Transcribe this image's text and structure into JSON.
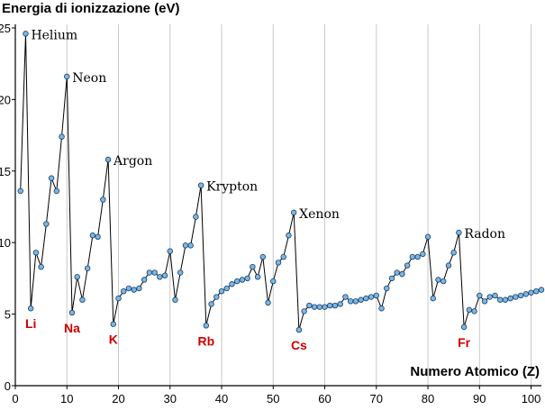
{
  "chart_data": {
    "type": "line",
    "title": "",
    "ylabel": "Energia di ionizzazione (eV)",
    "xlabel": "Numero Atomico (Z)",
    "xlim": [
      0,
      102
    ],
    "ylim": [
      0,
      25
    ],
    "xticks": [
      0,
      10,
      20,
      30,
      40,
      50,
      60,
      70,
      80,
      90,
      100
    ],
    "yticks": [
      0,
      5,
      10,
      15,
      20,
      25
    ],
    "grid": "vertical-only",
    "line_color": "#000000",
    "marker_fill": "#7ab8e0",
    "marker_stroke": "#1a3a6a",
    "noble_label_color": "#000000",
    "alkali_label_color": "#cc0000",
    "series": [
      {
        "x": [
          1,
          2,
          3,
          4,
          5,
          6,
          7,
          8,
          9,
          10,
          11,
          12,
          13,
          14,
          15,
          16,
          17,
          18,
          19,
          20,
          21,
          22,
          23,
          24,
          25,
          26,
          27,
          28,
          29,
          30,
          31,
          32,
          33,
          34,
          35,
          36,
          37,
          38,
          39,
          40,
          41,
          42,
          43,
          44,
          45,
          46,
          47,
          48,
          49,
          50,
          51,
          52,
          53,
          54,
          55,
          56,
          57,
          58,
          59,
          60,
          61,
          62,
          63,
          64,
          65,
          66,
          67,
          68,
          69,
          70,
          71,
          72,
          73,
          74,
          75,
          76,
          77,
          78,
          79,
          80,
          81,
          82,
          83,
          84,
          85,
          86,
          87,
          88,
          89,
          90,
          91,
          92,
          93,
          94,
          95,
          96,
          97,
          98,
          99,
          100,
          101,
          102
        ],
        "y": [
          13.6,
          24.6,
          5.4,
          9.3,
          8.3,
          11.3,
          14.5,
          13.6,
          17.4,
          21.6,
          5.1,
          7.6,
          6.0,
          8.2,
          10.5,
          10.4,
          13.0,
          15.8,
          4.3,
          6.1,
          6.6,
          6.8,
          6.7,
          6.8,
          7.4,
          7.9,
          7.9,
          7.6,
          7.7,
          9.4,
          6.0,
          7.9,
          9.8,
          9.8,
          11.8,
          14.0,
          4.2,
          5.7,
          6.2,
          6.6,
          6.8,
          7.1,
          7.3,
          7.4,
          7.5,
          8.3,
          7.6,
          9.0,
          5.8,
          7.3,
          8.6,
          9.0,
          10.5,
          12.1,
          3.9,
          5.2,
          5.6,
          5.5,
          5.5,
          5.5,
          5.6,
          5.6,
          5.7,
          6.2,
          5.9,
          5.9,
          6.0,
          6.1,
          6.2,
          6.3,
          5.4,
          6.8,
          7.5,
          7.9,
          7.8,
          8.4,
          9.0,
          9.0,
          9.2,
          10.4,
          6.1,
          7.4,
          7.3,
          8.4,
          9.3,
          10.7,
          4.1,
          5.3,
          5.2,
          6.3,
          5.9,
          6.2,
          6.3,
          6.0,
          6.0,
          6.1,
          6.2,
          6.3,
          6.4,
          6.5,
          6.6,
          6.7
        ]
      }
    ],
    "annotations": [
      {
        "text": "Helium",
        "x": 2,
        "y": 24.6,
        "group": "noble"
      },
      {
        "text": "Neon",
        "x": 10,
        "y": 21.6,
        "group": "noble"
      },
      {
        "text": "Argon",
        "x": 18,
        "y": 15.8,
        "group": "noble"
      },
      {
        "text": "Krypton",
        "x": 36,
        "y": 14.0,
        "group": "noble"
      },
      {
        "text": "Xenon",
        "x": 54,
        "y": 12.1,
        "group": "noble"
      },
      {
        "text": "Radon",
        "x": 86,
        "y": 10.7,
        "group": "noble"
      },
      {
        "text": "Li",
        "x": 3,
        "y": 5.4,
        "group": "alkali"
      },
      {
        "text": "Na",
        "x": 11,
        "y": 5.1,
        "group": "alkali"
      },
      {
        "text": "K",
        "x": 19,
        "y": 4.3,
        "group": "alkali"
      },
      {
        "text": "Rb",
        "x": 37,
        "y": 4.2,
        "group": "alkali"
      },
      {
        "text": "Cs",
        "x": 55,
        "y": 3.9,
        "group": "alkali"
      },
      {
        "text": "Fr",
        "x": 87,
        "y": 4.1,
        "group": "alkali"
      }
    ]
  }
}
